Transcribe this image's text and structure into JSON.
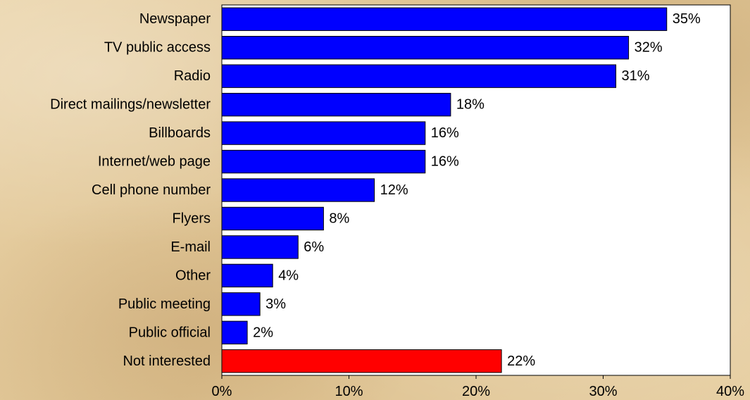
{
  "chart_data": {
    "type": "bar",
    "orientation": "horizontal",
    "categories": [
      "Newspaper",
      "TV public access",
      "Radio",
      "Direct mailings/newsletter",
      "Billboards",
      "Internet/web page",
      "Cell phone number",
      "Flyers",
      "E-mail",
      "Other",
      "Public meeting",
      "Public official",
      "Not interested"
    ],
    "values": [
      35,
      32,
      31,
      18,
      16,
      16,
      12,
      8,
      6,
      4,
      3,
      2,
      22
    ],
    "value_labels": [
      "35%",
      "32%",
      "31%",
      "18%",
      "16%",
      "16%",
      "12%",
      "8%",
      "6%",
      "4%",
      "3%",
      "2%",
      "22%"
    ],
    "bar_colors": [
      "#0000ff",
      "#0000ff",
      "#0000ff",
      "#0000ff",
      "#0000ff",
      "#0000ff",
      "#0000ff",
      "#0000ff",
      "#0000ff",
      "#0000ff",
      "#0000ff",
      "#0000ff",
      "#ff0000"
    ],
    "xlim": [
      0,
      40
    ],
    "x_ticks": [
      "0%",
      "10%",
      "20%",
      "30%",
      "40%"
    ],
    "title": "",
    "xlabel": "",
    "ylabel": "",
    "grid": false,
    "plot_background": "#ffffff",
    "page_background": "#e3c99b"
  }
}
